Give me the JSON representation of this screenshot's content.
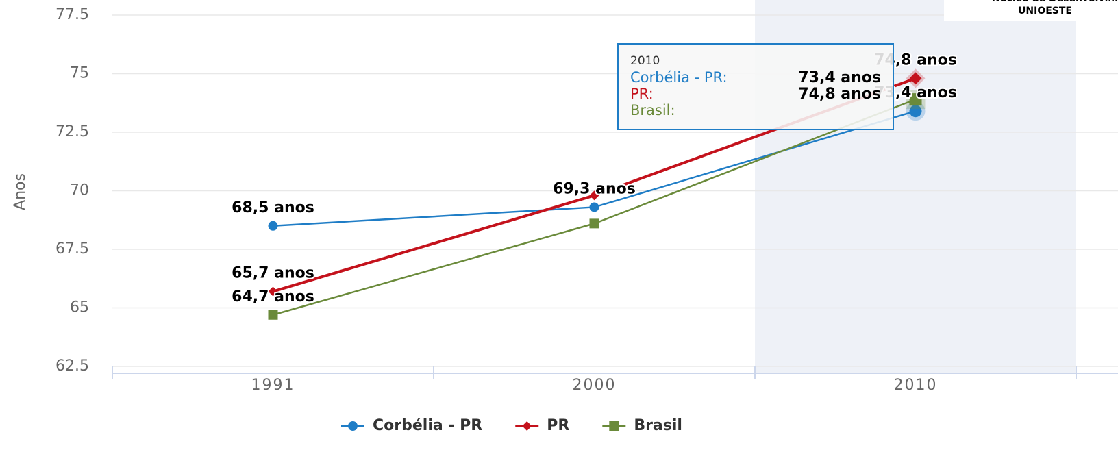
{
  "chart_data": {
    "type": "line",
    "ylabel": "Anos",
    "categories": [
      "1991",
      "2000",
      "2010"
    ],
    "series": [
      {
        "name": "Corbélia - PR",
        "color": "#1f7dc6",
        "marker": "circle",
        "values": [
          68.5,
          69.3,
          73.4
        ],
        "value_labels": [
          "68,5 anos",
          "69,3 anos",
          "73,4 anos"
        ]
      },
      {
        "name": "PR",
        "color": "#c4121c",
        "marker": "diamond",
        "values": [
          65.7,
          69.8,
          74.8
        ],
        "value_labels": [
          "65,7 anos",
          null,
          "74,8 anos"
        ]
      },
      {
        "name": "Brasil",
        "color": "#6a8a3a",
        "marker": "square",
        "values": [
          64.7,
          68.6,
          73.9
        ],
        "value_labels": [
          "64,7 anos",
          null,
          null
        ]
      }
    ],
    "ylim": [
      62.5,
      77.5
    ],
    "yticks": [
      62.5,
      65,
      67.5,
      70,
      72.5,
      75,
      77.5
    ],
    "grid": true,
    "highlight_category": 2,
    "tooltip": {
      "labels": [
        "Corbélia - PR:",
        "PR:",
        "Brasil:"
      ]
    },
    "annotations": [
      "Núcleo de Desenvolvim",
      "UNIOESTE"
    ]
  }
}
